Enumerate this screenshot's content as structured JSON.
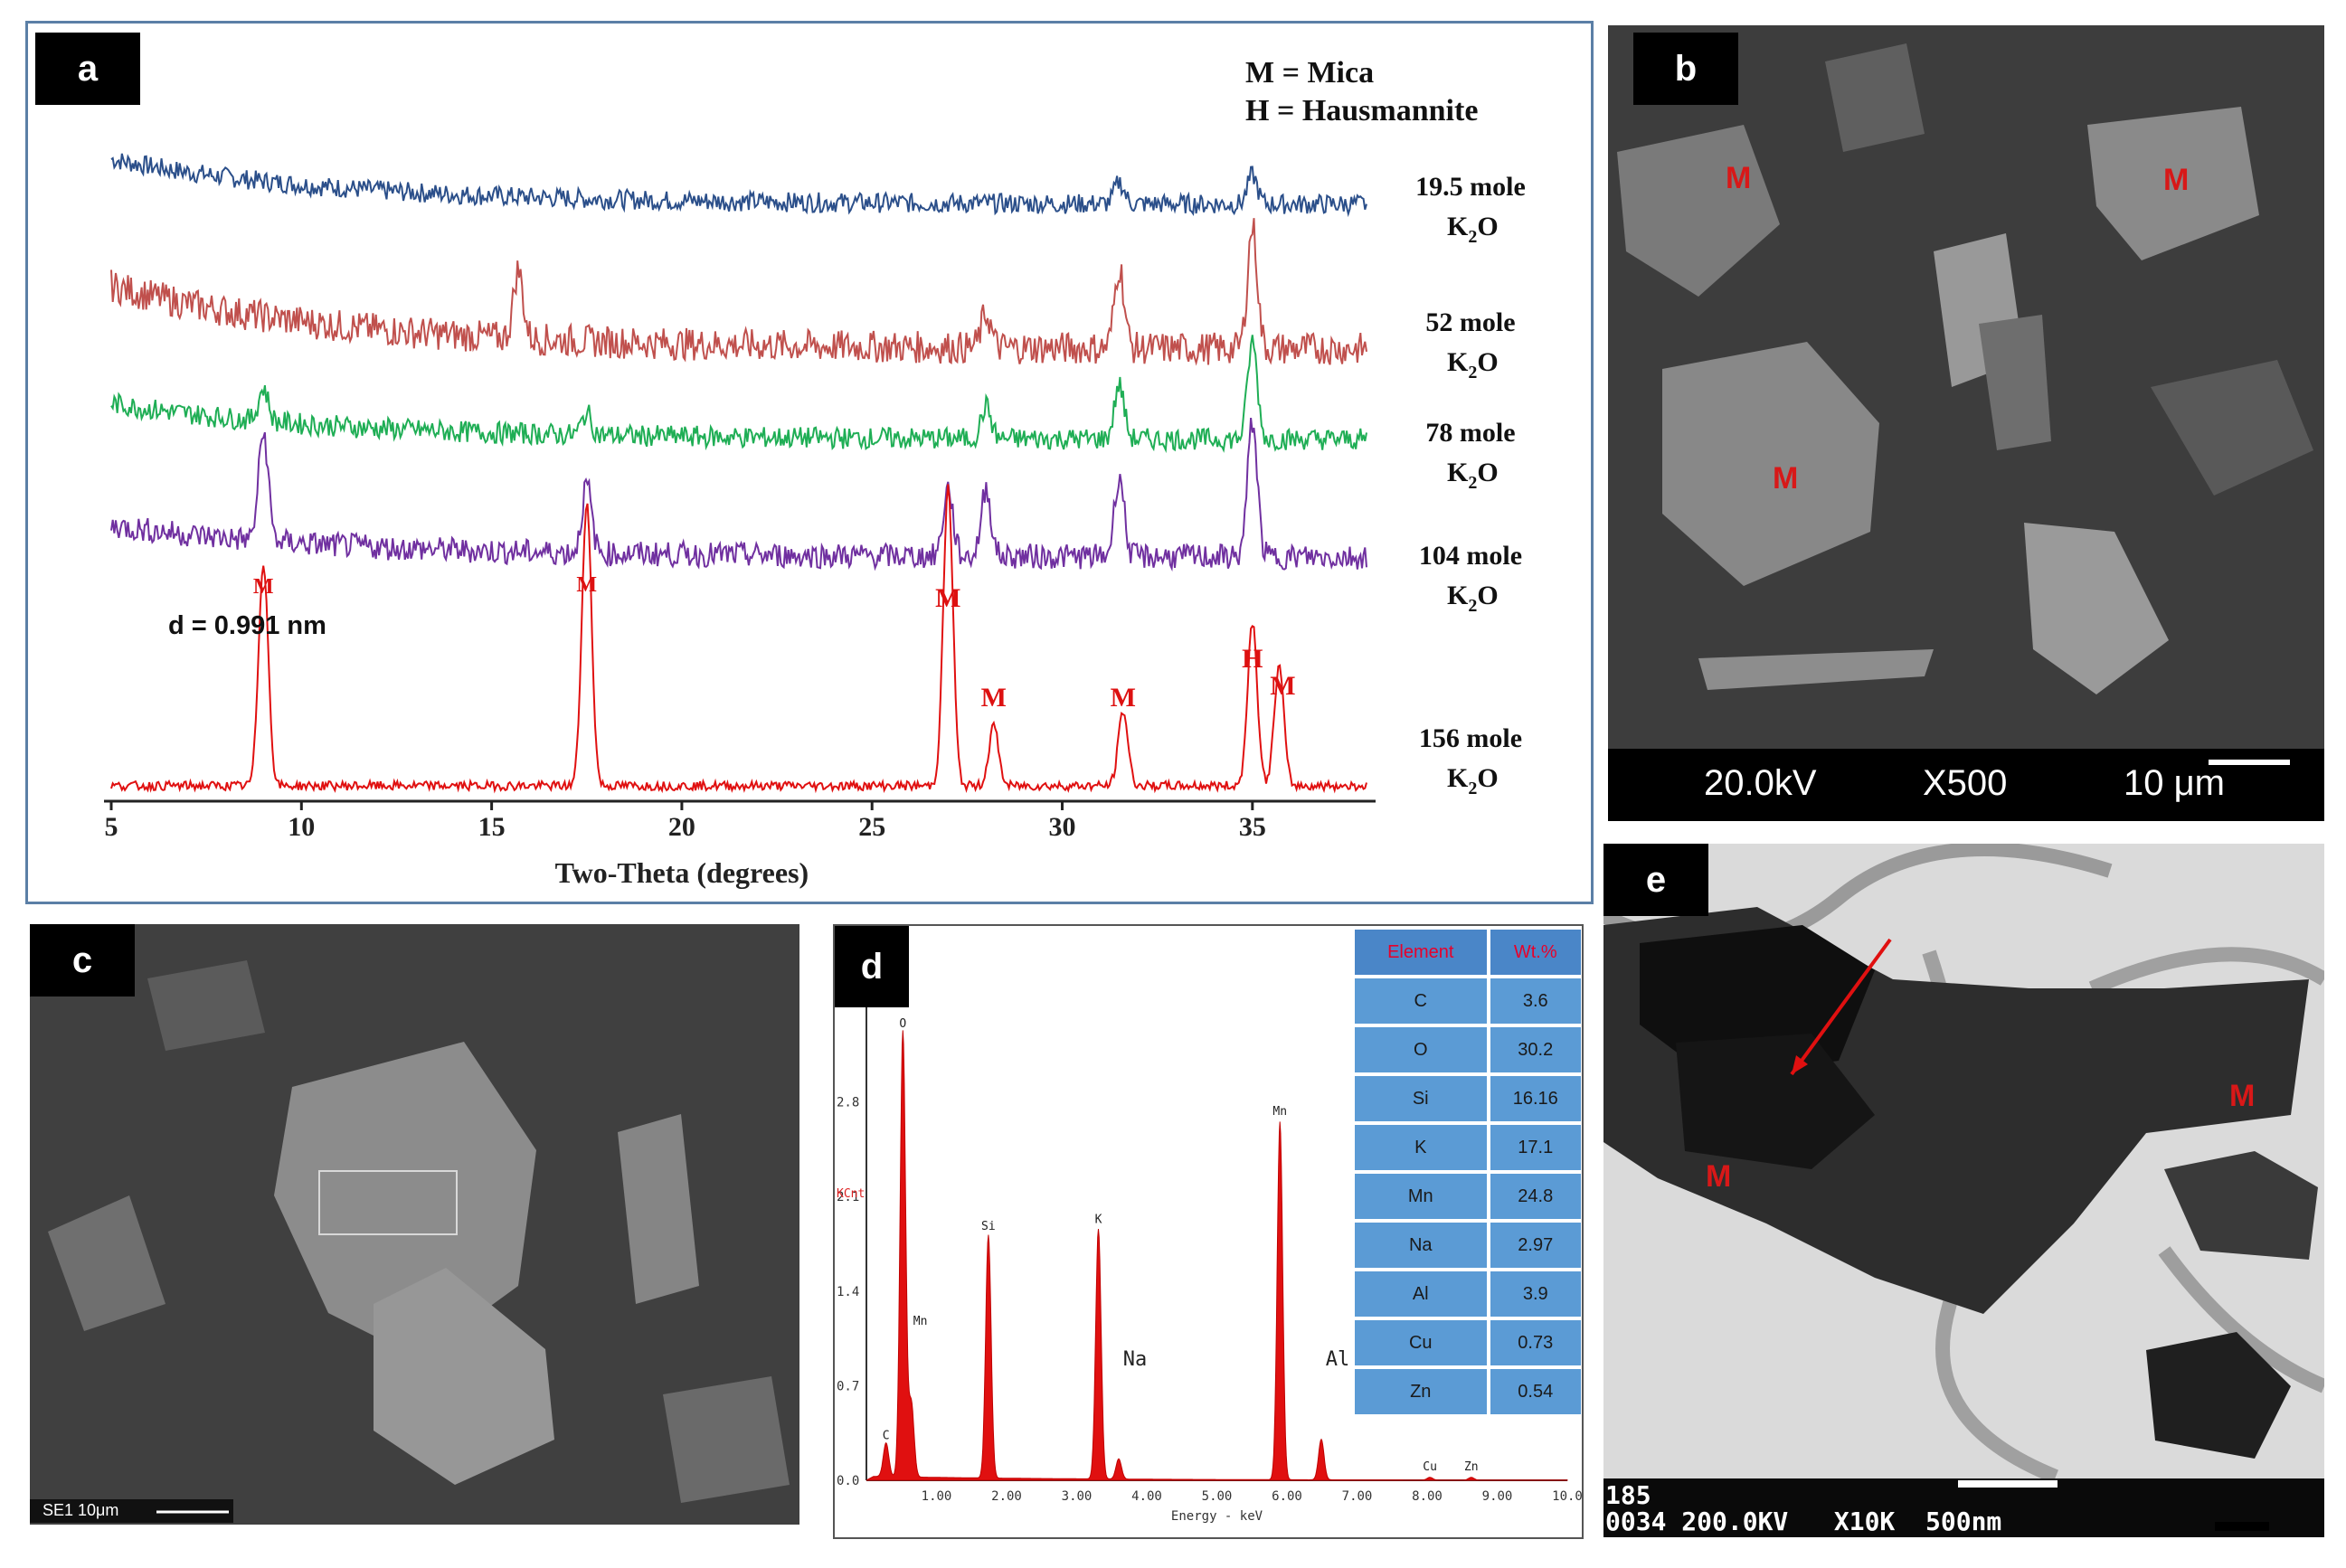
{
  "panels": {
    "a": {
      "tag": "a",
      "legend": [
        "M = Mica",
        "H = Hausmannite"
      ],
      "d_label": "d = 0.991 nm",
      "xlabel": "Two-Theta  (degrees)",
      "samples": [
        {
          "line1": "19.5 mole",
          "line2": "K",
          "sub": "2",
          "tail": "O",
          "color": "#2b4f8a"
        },
        {
          "line1": "52 mole",
          "line2": "K",
          "sub": "2",
          "tail": "O",
          "color": "#c0504d"
        },
        {
          "line1": "78 mole",
          "line2": "K",
          "sub": "2",
          "tail": "O",
          "color": "#1fae55"
        },
        {
          "line1": "104 mole",
          "line2": "K",
          "sub": "2",
          "tail": "O",
          "color": "#7030a0"
        },
        {
          "line1": "156 mole",
          "line2": "K",
          "sub": "2",
          "tail": "O",
          "color": "#e01010"
        }
      ],
      "peak_labels": [
        {
          "text": "M",
          "x": 9.0
        },
        {
          "text": "M",
          "x": 17.5
        },
        {
          "text": "M",
          "x": 27.0
        },
        {
          "text": "M",
          "x": 28.2
        },
        {
          "text": "M",
          "x": 31.6
        },
        {
          "text": "H",
          "x": 35.0
        },
        {
          "text": "M",
          "x": 35.8
        }
      ]
    },
    "b": {
      "tag": "b",
      "labels": [
        "M",
        "M",
        "M"
      ],
      "footer": [
        "20.0kV",
        "X500",
        "10 μm"
      ]
    },
    "c": {
      "tag": "c",
      "scale": "SE1  10μm"
    },
    "d": {
      "tag": "d",
      "ylabel": "KCnt",
      "xlabel": "Energy - keV",
      "peak_labels": [
        "O",
        "C",
        "Mn",
        "Si",
        "K",
        "Na",
        "Mn",
        "Al",
        "Cu",
        "Zn"
      ],
      "table_header": [
        "Element",
        "Wt.%"
      ],
      "table_rows": [
        [
          "C",
          "3.6"
        ],
        [
          "O",
          "30.2"
        ],
        [
          "Si",
          "16.16"
        ],
        [
          "K",
          "17.1"
        ],
        [
          "Mn",
          "24.8"
        ],
        [
          "Na",
          "2.97"
        ],
        [
          "Al",
          "3.9"
        ],
        [
          "Cu",
          "0.73"
        ],
        [
          "Zn",
          "0.54"
        ]
      ]
    },
    "e": {
      "tag": "e",
      "labels": [
        "M",
        "M"
      ],
      "footer": [
        "185",
        "0034 200.0KV   X10K  500nm"
      ]
    }
  },
  "chart_data": [
    {
      "type": "line",
      "panel": "a",
      "xlabel": "Two-Theta  (degrees)",
      "xlim": [
        5,
        38
      ],
      "xticks": [
        5,
        10,
        15,
        20,
        25,
        30,
        35
      ],
      "series": [
        {
          "name": "19.5 mole K2O",
          "peaks": [
            [
              31.5,
              0.3
            ],
            [
              35.0,
              0.4
            ]
          ]
        },
        {
          "name": "52 mole K2O",
          "peaks": [
            [
              15.7,
              0.5
            ],
            [
              28.0,
              0.25
            ],
            [
              31.5,
              0.6
            ],
            [
              35.0,
              0.9
            ]
          ]
        },
        {
          "name": "78 mole K2O",
          "peaks": [
            [
              9.0,
              0.3
            ],
            [
              17.5,
              0.2
            ],
            [
              28.0,
              0.3
            ],
            [
              31.5,
              0.5
            ],
            [
              35.0,
              0.9
            ]
          ]
        },
        {
          "name": "104 mole K2O",
          "peaks": [
            [
              9.0,
              0.8
            ],
            [
              17.5,
              0.5
            ],
            [
              27.0,
              0.5
            ],
            [
              28.0,
              0.5
            ],
            [
              31.5,
              0.6
            ],
            [
              35.0,
              1.0
            ]
          ]
        },
        {
          "name": "156 mole K2O",
          "peaks": [
            [
              9.0,
              0.75
            ],
            [
              17.5,
              0.95
            ],
            [
              27.0,
              1.0
            ],
            [
              28.2,
              0.2
            ],
            [
              31.6,
              0.25
            ],
            [
              35.0,
              0.55
            ],
            [
              35.7,
              0.4
            ]
          ]
        }
      ]
    },
    {
      "type": "bar",
      "panel": "d",
      "xlabel": "Energy - keV",
      "ylabel": "KCnt",
      "xlim": [
        0,
        10
      ],
      "xticks": [
        "1.00",
        "2.00",
        "3.00",
        "4.00",
        "5.00",
        "6.00",
        "7.00",
        "8.00",
        "9.00",
        "10.0"
      ],
      "yticks": [
        "0.0",
        "0.7",
        "1.4",
        "2.1",
        "2.8"
      ],
      "peaks": [
        {
          "label": "C",
          "x": 0.28,
          "y": 0.25
        },
        {
          "label": "O",
          "x": 0.52,
          "y": 3.3
        },
        {
          "label": "Mn",
          "x": 0.64,
          "y": 0.55
        },
        {
          "label": "Si",
          "x": 1.74,
          "y": 1.8
        },
        {
          "label": "K",
          "x": 3.31,
          "y": 1.85
        },
        {
          "label": "Na",
          "x": 3.6,
          "y": 0.15
        },
        {
          "label": "Mn",
          "x": 5.9,
          "y": 2.65
        },
        {
          "label": "Al",
          "x": 6.49,
          "y": 0.3
        },
        {
          "label": "Cu",
          "x": 8.04,
          "y": 0.02
        },
        {
          "label": "Zn",
          "x": 8.63,
          "y": 0.02
        }
      ]
    }
  ]
}
